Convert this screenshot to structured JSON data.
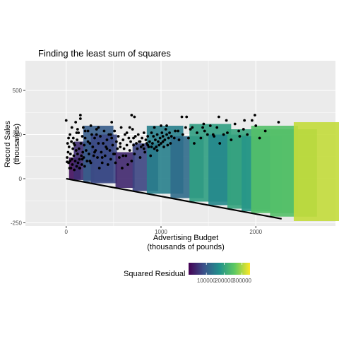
{
  "chart_data": {
    "type": "scatter",
    "title": "Finding the least sum of squares",
    "xlabel": [
      "Advertising Budget",
      "(thousands of pounds)"
    ],
    "ylabel": [
      "Record Sales",
      "(thousands)"
    ],
    "xlim": [
      -430,
      2840
    ],
    "ylim": [
      -268,
      668
    ],
    "x_ticks": [
      0,
      1000,
      2000
    ],
    "x_tick_labels": [
      "0",
      "1000",
      "2000"
    ],
    "y_ticks": [
      -250,
      0,
      250,
      500
    ],
    "y_tick_labels": [
      "-250",
      "0",
      "250",
      "500"
    ],
    "grid": true,
    "line": {
      "intercept": 0,
      "slope": -0.1,
      "x_range": [
        0,
        2272
      ]
    },
    "legend": {
      "title": "Squared Residual",
      "position": "bottom",
      "range": [
        0,
        345000
      ],
      "ticks": [
        100000,
        200000,
        300000
      ],
      "tick_labels": [
        "100000",
        "200000",
        "300000"
      ],
      "colors": [
        "#440154",
        "#3b528b",
        "#21918c",
        "#5ec962",
        "#fde725"
      ]
    },
    "squares": [
      {
        "x": 30,
        "y": 120
      },
      {
        "x": 80,
        "y": 210
      },
      {
        "x": 180,
        "y": 300
      },
      {
        "x": 260,
        "y": 250
      },
      {
        "x": 520,
        "y": 150
      },
      {
        "x": 700,
        "y": 200
      },
      {
        "x": 850,
        "y": 300
      },
      {
        "x": 1100,
        "y": 240
      },
      {
        "x": 1300,
        "y": 310
      },
      {
        "x": 1500,
        "y": 250
      },
      {
        "x": 1700,
        "y": 280
      },
      {
        "x": 1850,
        "y": 240
      },
      {
        "x": 1950,
        "y": 300
      },
      {
        "x": 2150,
        "y": 280
      },
      {
        "x": 2400,
        "y": 320
      }
    ],
    "points": [
      [
        0,
        330
      ],
      [
        10,
        120
      ],
      [
        10,
        95
      ],
      [
        15,
        200
      ],
      [
        20,
        150
      ],
      [
        25,
        90
      ],
      [
        30,
        180
      ],
      [
        35,
        60
      ],
      [
        40,
        250
      ],
      [
        45,
        140
      ],
      [
        50,
        60
      ],
      [
        55,
        210
      ],
      [
        60,
        110
      ],
      [
        65,
        80
      ],
      [
        70,
        170
      ],
      [
        75,
        230
      ],
      [
        80,
        130
      ],
      [
        85,
        50
      ],
      [
        90,
        190
      ],
      [
        95,
        100
      ],
      [
        100,
        320
      ],
      [
        105,
        160
      ],
      [
        110,
        70
      ],
      [
        115,
        220
      ],
      [
        120,
        140
      ],
      [
        125,
        90
      ],
      [
        130,
        260
      ],
      [
        135,
        170
      ],
      [
        140,
        110
      ],
      [
        145,
        60
      ],
      [
        150,
        360
      ],
      [
        155,
        200
      ],
      [
        160,
        130
      ],
      [
        165,
        80
      ],
      [
        170,
        240
      ],
      [
        175,
        150
      ],
      [
        180,
        290
      ],
      [
        185,
        120
      ],
      [
        190,
        190
      ],
      [
        195,
        70
      ],
      [
        200,
        230
      ],
      [
        210,
        160
      ],
      [
        220,
        100
      ],
      [
        230,
        270
      ],
      [
        240,
        140
      ],
      [
        250,
        200
      ],
      [
        260,
        90
      ],
      [
        270,
        250
      ],
      [
        280,
        180
      ],
      [
        290,
        130
      ],
      [
        300,
        230
      ],
      [
        310,
        160
      ],
      [
        320,
        280
      ],
      [
        330,
        120
      ],
      [
        340,
        200
      ],
      [
        350,
        60
      ],
      [
        360,
        240
      ],
      [
        370,
        150
      ],
      [
        380,
        90
      ],
      [
        390,
        200
      ],
      [
        400,
        270
      ],
      [
        410,
        130
      ],
      [
        420,
        180
      ],
      [
        430,
        220
      ],
      [
        440,
        80
      ],
      [
        450,
        250
      ],
      [
        460,
        160
      ],
      [
        470,
        110
      ],
      [
        480,
        230
      ],
      [
        490,
        190
      ],
      [
        500,
        140
      ],
      [
        510,
        270
      ],
      [
        520,
        90
      ],
      [
        530,
        210
      ],
      [
        540,
        170
      ],
      [
        550,
        240
      ],
      [
        560,
        120
      ],
      [
        570,
        200
      ],
      [
        580,
        290
      ],
      [
        590,
        60
      ],
      [
        600,
        220
      ],
      [
        610,
        170
      ],
      [
        620,
        250
      ],
      [
        630,
        130
      ],
      [
        640,
        190
      ],
      [
        650,
        80
      ],
      [
        660,
        230
      ],
      [
        670,
        160
      ],
      [
        680,
        210
      ],
      [
        690,
        100
      ],
      [
        700,
        280
      ],
      [
        710,
        190
      ],
      [
        720,
        140
      ],
      [
        730,
        240
      ],
      [
        740,
        200
      ],
      [
        750,
        170
      ],
      [
        760,
        250
      ],
      [
        770,
        210
      ],
      [
        780,
        120
      ],
      [
        790,
        180
      ],
      [
        800,
        230
      ],
      [
        810,
        190
      ],
      [
        820,
        260
      ],
      [
        830,
        150
      ],
      [
        840,
        220
      ],
      [
        850,
        200
      ],
      [
        860,
        240
      ],
      [
        870,
        180
      ],
      [
        880,
        210
      ],
      [
        890,
        130
      ],
      [
        900,
        260
      ],
      [
        910,
        200
      ],
      [
        920,
        240
      ],
      [
        930,
        170
      ],
      [
        940,
        220
      ],
      [
        950,
        180
      ],
      [
        960,
        250
      ],
      [
        970,
        210
      ],
      [
        980,
        190
      ],
      [
        990,
        230
      ],
      [
        1000,
        200
      ],
      [
        1010,
        260
      ],
      [
        1020,
        240
      ],
      [
        1030,
        180
      ],
      [
        1040,
        220
      ],
      [
        1050,
        280
      ],
      [
        1060,
        250
      ],
      [
        1070,
        190
      ],
      [
        1080,
        230
      ],
      [
        1090,
        260
      ],
      [
        1100,
        200
      ],
      [
        1110,
        240
      ],
      [
        1150,
        270
      ],
      [
        1190,
        220
      ],
      [
        1230,
        250
      ],
      [
        1260,
        290
      ],
      [
        1290,
        230
      ],
      [
        1310,
        280
      ],
      [
        1350,
        200
      ],
      [
        1380,
        260
      ],
      [
        1420,
        230
      ],
      [
        1460,
        270
      ],
      [
        1490,
        250
      ],
      [
        1520,
        300
      ],
      [
        1560,
        240
      ],
      [
        1590,
        290
      ],
      [
        1620,
        200
      ],
      [
        1660,
        250
      ],
      [
        1700,
        260
      ],
      [
        1740,
        220
      ],
      [
        1780,
        310
      ],
      [
        1830,
        240
      ],
      [
        1870,
        280
      ],
      [
        1910,
        250
      ],
      [
        1960,
        330
      ],
      [
        2000,
        300
      ],
      [
        2040,
        230
      ],
      [
        2100,
        270
      ],
      [
        2240,
        320
      ],
      [
        690,
        360
      ],
      [
        480,
        320
      ],
      [
        720,
        350
      ],
      [
        1220,
        350
      ],
      [
        1270,
        350
      ],
      [
        1610,
        350
      ],
      [
        1990,
        360
      ],
      [
        1440,
        290
      ],
      [
        1000,
        300
      ],
      [
        150,
        340
      ],
      [
        60,
        290
      ],
      [
        120,
        280
      ],
      [
        200,
        270
      ],
      [
        260,
        300
      ],
      [
        320,
        250
      ],
      [
        80,
        200
      ],
      [
        40,
        100
      ],
      [
        140,
        60
      ],
      [
        230,
        210
      ],
      [
        300,
        150
      ],
      [
        380,
        120
      ],
      [
        470,
        250
      ],
      [
        510,
        140
      ],
      [
        570,
        180
      ],
      [
        640,
        260
      ],
      [
        710,
        230
      ],
      [
        780,
        210
      ],
      [
        860,
        190
      ],
      [
        930,
        290
      ],
      [
        960,
        160
      ],
      [
        1060,
        300
      ],
      [
        1140,
        230
      ],
      [
        1180,
        270
      ],
      [
        1330,
        290
      ],
      [
        1450,
        310
      ],
      [
        1550,
        250
      ],
      [
        1690,
        330
      ],
      [
        1820,
        270
      ],
      [
        1880,
        330
      ],
      [
        25,
        230
      ],
      [
        110,
        260
      ],
      [
        170,
        110
      ],
      [
        250,
        100
      ],
      [
        340,
        290
      ],
      [
        430,
        170
      ],
      [
        600,
        130
      ],
      [
        670,
        290
      ],
      [
        820,
        170
      ],
      [
        900,
        180
      ],
      [
        1020,
        210
      ]
    ]
  }
}
